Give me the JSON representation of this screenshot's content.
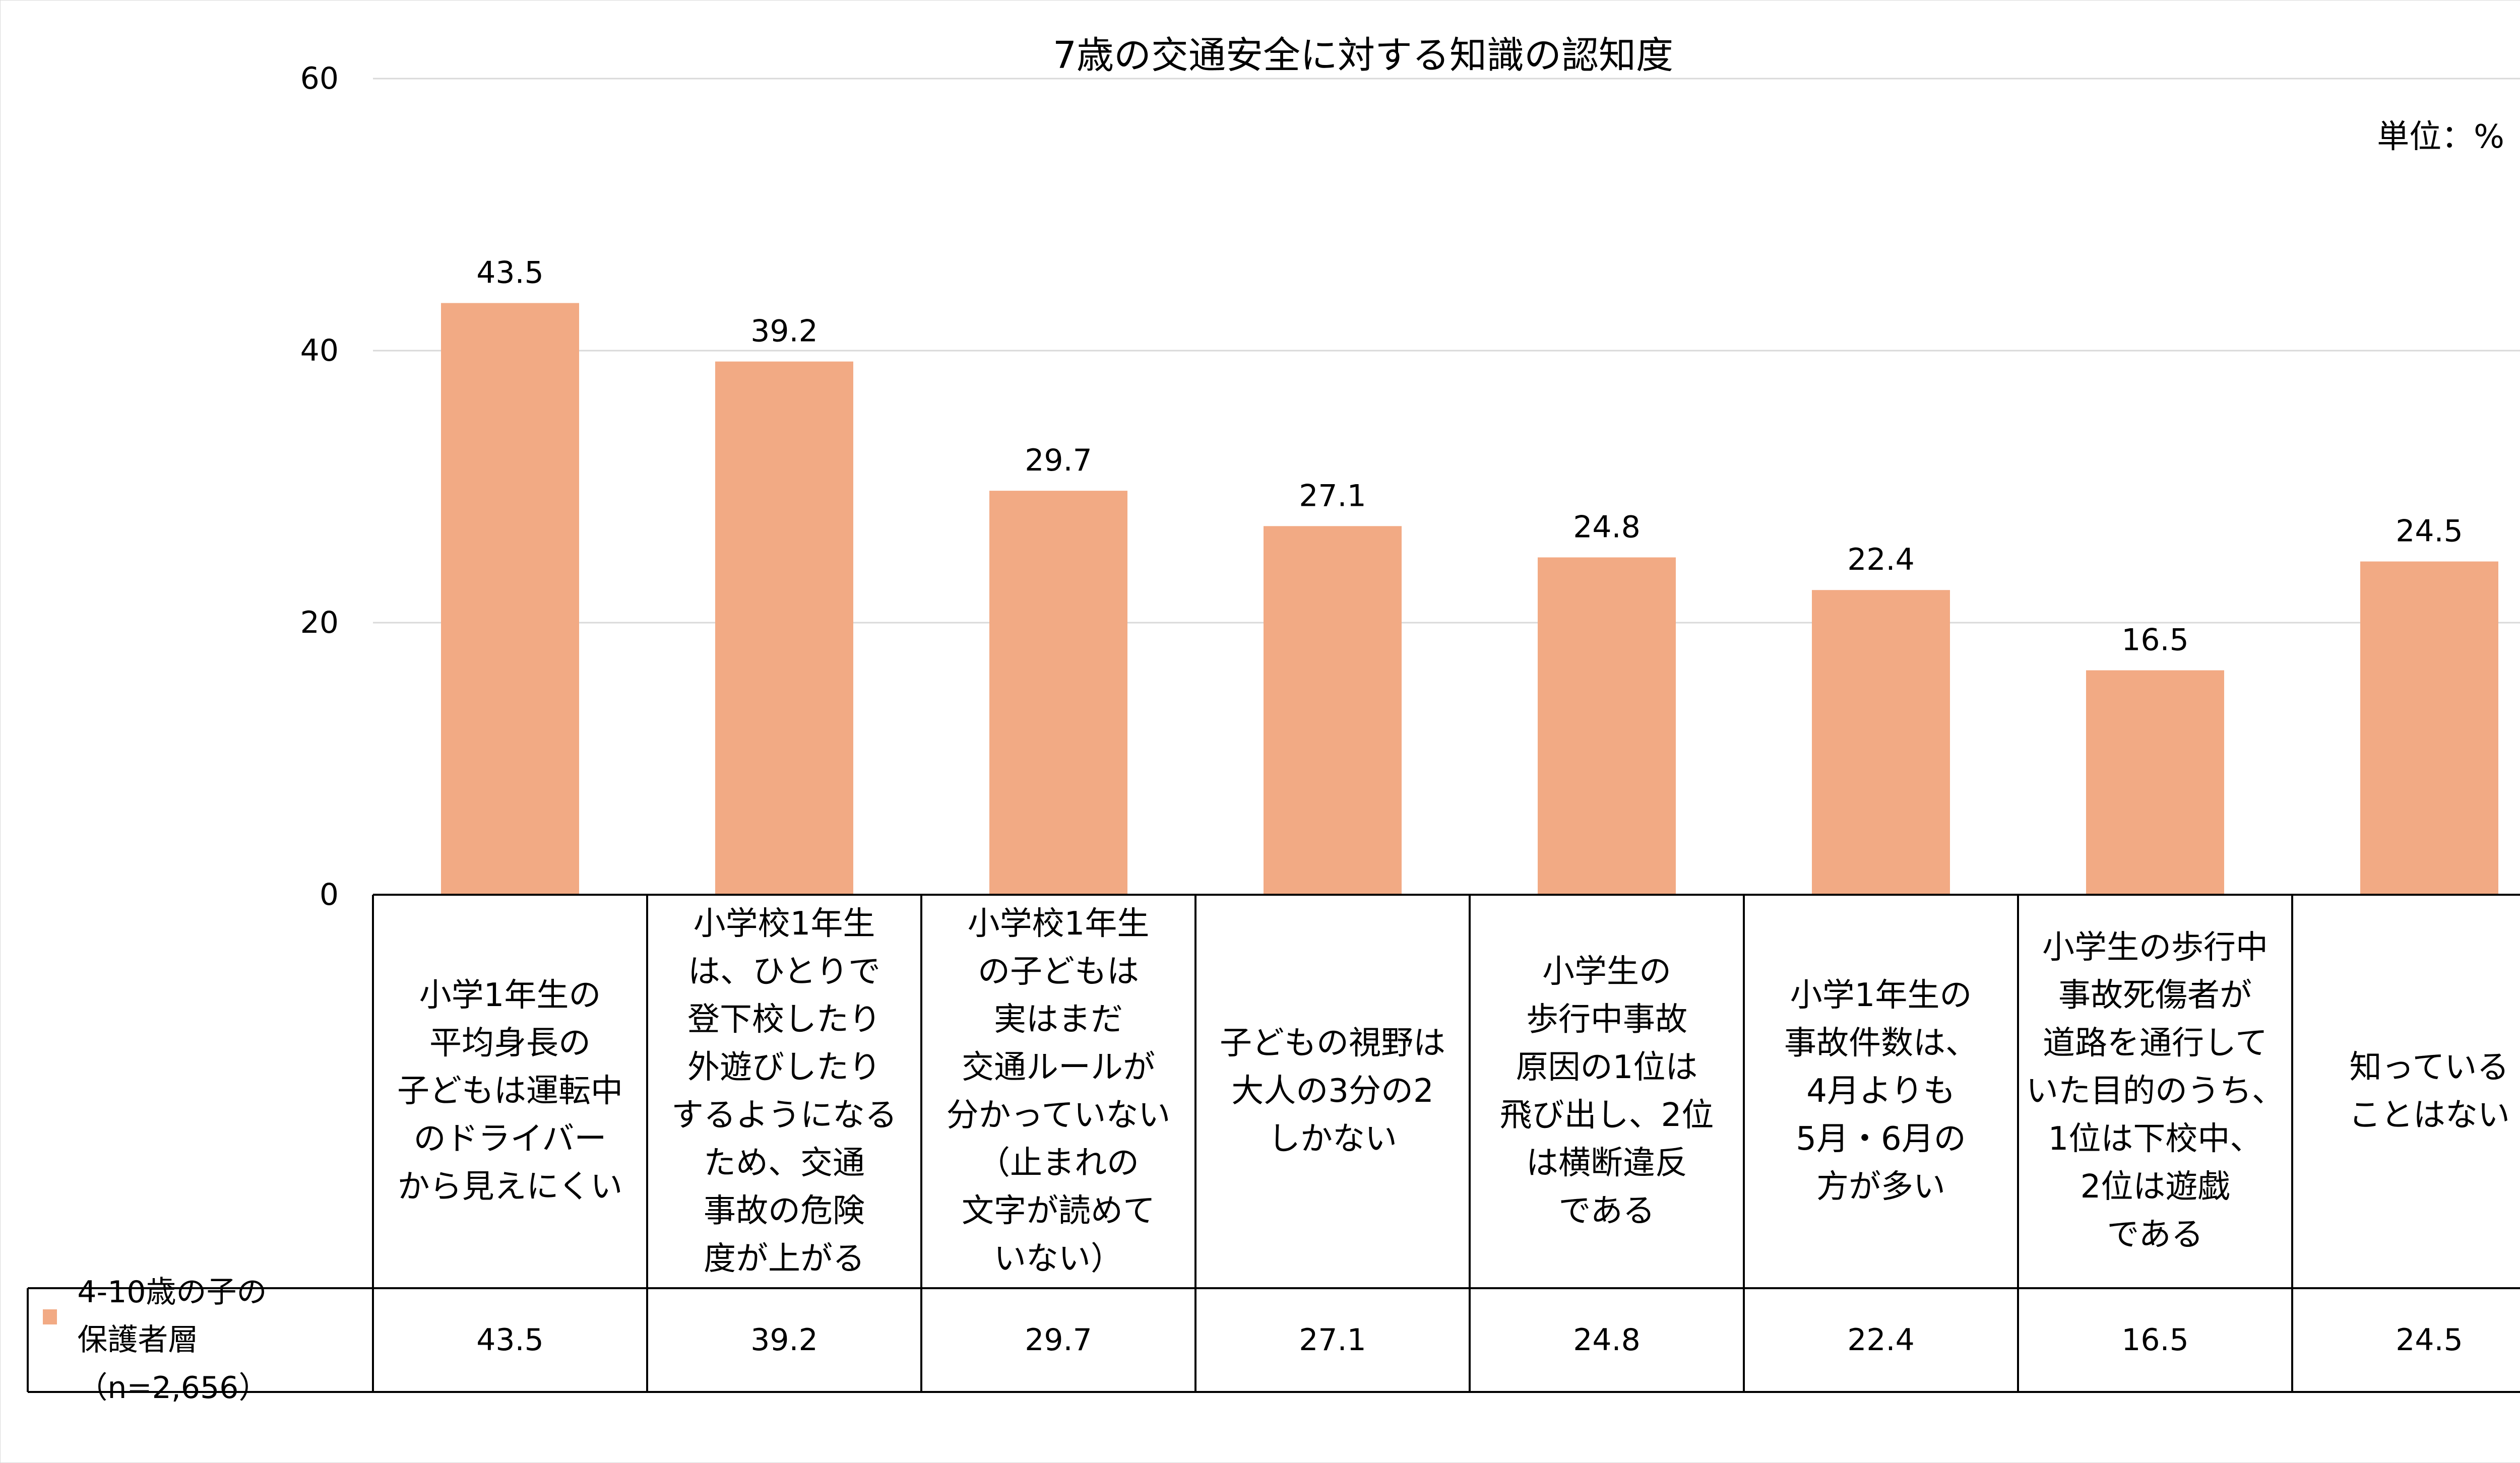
{
  "chart_data": {
    "type": "bar",
    "title": "7歳の交通安全に対する知識の認知度",
    "unit_label": "単位：%",
    "categories": [
      "小学1年生の\n平均身長の\n子どもは運転中\nのドライバー\nから見えにくい",
      "小学校1年生\nは、ひとりで\n登下校したり\n外遊びしたり\nするようになる\nため、交通\n事故の危険\n度が上がる",
      "小学校1年生\nの子どもは\n実はまだ\n交通ルールが\n分かっていない\n（止まれの\n文字が読めて\nいない）",
      "子どもの視野は\n大人の3分の2\nしかない",
      "小学生の\n歩行中事故\n原因の1位は\n飛び出し、2位\nは横断違反\nである",
      "小学1年生の\n事故件数は、\n4月よりも\n5月・6月の\n方が多い",
      "小学生の歩行中\n事故死傷者が\n道路を通行して\nいた目的のうち、\n1位は下校中、\n2位は遊戯\nである",
      "知っている\nことはない"
    ],
    "series": [
      {
        "name": "4-10歳の子の\n保護者層（n=2,656）",
        "values": [
          43.5,
          39.2,
          29.7,
          27.1,
          24.8,
          22.4,
          16.5,
          24.5
        ],
        "color": "#F2AA84"
      }
    ],
    "value_labels": [
      "43.5",
      "39.2",
      "29.7",
      "27.1",
      "24.8",
      "22.4",
      "16.5",
      "24.5"
    ],
    "y_ticks": [
      "0",
      "20",
      "40",
      "60"
    ],
    "ylim": [
      0,
      60
    ],
    "grid": true,
    "legend": "data-table"
  }
}
